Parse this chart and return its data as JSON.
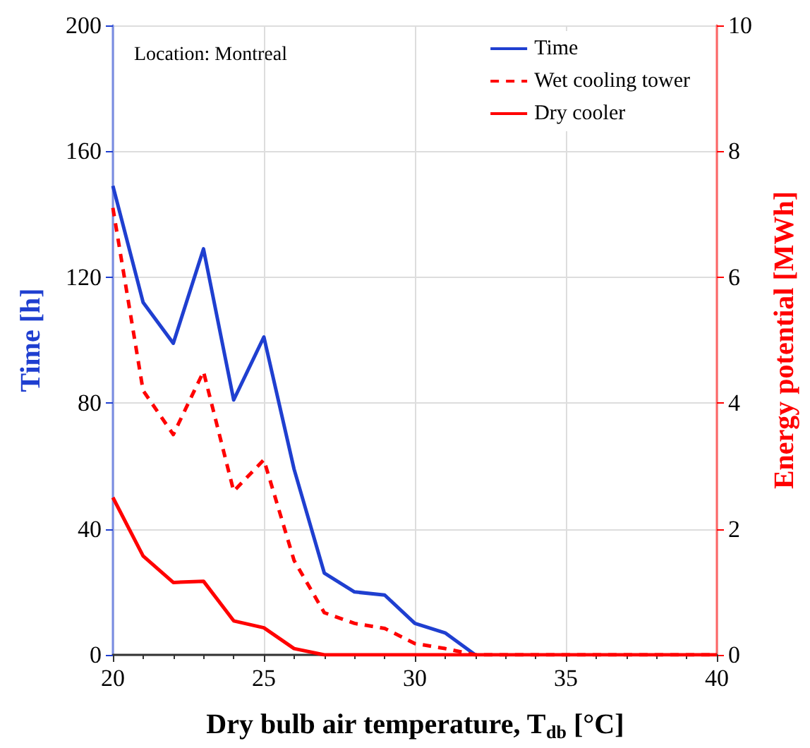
{
  "chart_data": {
    "type": "line",
    "xlabel": "Dry bulb air temperature, T$_{db}$ [°C]",
    "ylabel": "Time [h]",
    "y2label": "Energy potential [MWh]",
    "annotations": [
      "Location: Montreal"
    ],
    "series": [
      {
        "name": "Time",
        "color": "#1f3fd0",
        "line_style": "solid",
        "x": [
          20,
          21,
          22,
          23,
          24,
          25,
          26,
          27,
          28,
          29,
          30,
          31,
          32
        ],
        "values": [
          149,
          112,
          99,
          129,
          81,
          101,
          59,
          26,
          20,
          19,
          10,
          7,
          0
        ]
      },
      {
        "name": "Wet cooling tower",
        "color": "#ff0000",
        "axis": "y2",
        "line_style": "dashed",
        "x": [
          20,
          21,
          22,
          23,
          24,
          25,
          26,
          27,
          28,
          29,
          30,
          31,
          32,
          33,
          34,
          35,
          36,
          37,
          38,
          39,
          40
        ],
        "values": [
          7.1,
          4.2,
          3.5,
          4.5,
          2.6,
          3.1,
          1.5,
          0.67,
          0.5,
          0.42,
          0.18,
          0.1,
          0,
          0,
          0,
          0,
          0,
          0,
          0,
          0,
          0
        ]
      },
      {
        "name": "Dry cooler",
        "color": "#ff0000",
        "axis": "y2",
        "line_style": "solid",
        "x": [
          20,
          21,
          22,
          23,
          24,
          25,
          26,
          27,
          28,
          29,
          30,
          31,
          32,
          33,
          34,
          35,
          36,
          37,
          38,
          39,
          40
        ],
        "values": [
          2.5,
          1.57,
          1.15,
          1.17,
          0.54,
          0.43,
          0.1,
          0,
          0,
          0,
          0,
          0,
          0,
          0,
          0,
          0,
          0,
          0,
          0,
          0,
          0
        ]
      }
    ],
    "xlim": [
      20,
      40
    ],
    "xticks": [
      20,
      25,
      30,
      35,
      40
    ],
    "ylim": [
      0,
      200
    ],
    "yticks": [
      0,
      40,
      80,
      120,
      160,
      200
    ],
    "y2lim": [
      0,
      10
    ],
    "y2ticks": [
      0,
      2,
      4,
      6,
      8,
      10
    ],
    "grid": true,
    "legend": "top right",
    "marker": "none"
  }
}
